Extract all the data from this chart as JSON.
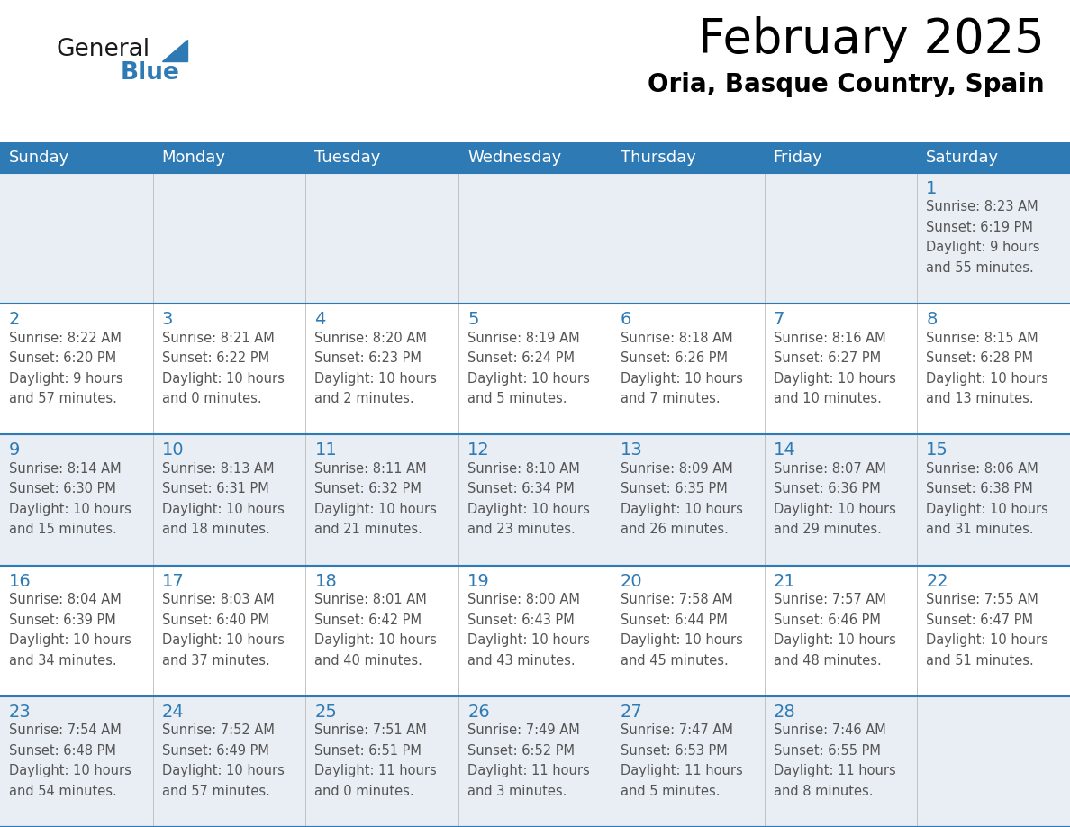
{
  "title": "February 2025",
  "subtitle": "Oria, Basque Country, Spain",
  "days_of_week": [
    "Sunday",
    "Monday",
    "Tuesday",
    "Wednesday",
    "Thursday",
    "Friday",
    "Saturday"
  ],
  "header_bg": "#2e7ab5",
  "header_text": "#ffffff",
  "day_number_color": "#2e7ab5",
  "cell_text_color": "#555555",
  "grid_color": "#2e7ab5",
  "row0_bg": "#e8eef4",
  "row1_bg": "#ffffff",
  "row2_bg": "#e8eef4",
  "row3_bg": "#ffffff",
  "row4_bg": "#e8eef4",
  "title_color": "#000000",
  "subtitle_color": "#000000",
  "logo_general_color": "#1a1a1a",
  "logo_blue_color": "#2e7ab5",
  "fig_width": 11.88,
  "fig_height": 9.18,
  "calendar_data": [
    {
      "day": 1,
      "col": 6,
      "row": 0,
      "sunrise": "8:23 AM",
      "sunset": "6:19 PM",
      "daylight": "9 hours and 55 minutes."
    },
    {
      "day": 2,
      "col": 0,
      "row": 1,
      "sunrise": "8:22 AM",
      "sunset": "6:20 PM",
      "daylight": "9 hours and 57 minutes."
    },
    {
      "day": 3,
      "col": 1,
      "row": 1,
      "sunrise": "8:21 AM",
      "sunset": "6:22 PM",
      "daylight": "10 hours and 0 minutes."
    },
    {
      "day": 4,
      "col": 2,
      "row": 1,
      "sunrise": "8:20 AM",
      "sunset": "6:23 PM",
      "daylight": "10 hours and 2 minutes."
    },
    {
      "day": 5,
      "col": 3,
      "row": 1,
      "sunrise": "8:19 AM",
      "sunset": "6:24 PM",
      "daylight": "10 hours and 5 minutes."
    },
    {
      "day": 6,
      "col": 4,
      "row": 1,
      "sunrise": "8:18 AM",
      "sunset": "6:26 PM",
      "daylight": "10 hours and 7 minutes."
    },
    {
      "day": 7,
      "col": 5,
      "row": 1,
      "sunrise": "8:16 AM",
      "sunset": "6:27 PM",
      "daylight": "10 hours and 10 minutes."
    },
    {
      "day": 8,
      "col": 6,
      "row": 1,
      "sunrise": "8:15 AM",
      "sunset": "6:28 PM",
      "daylight": "10 hours and 13 minutes."
    },
    {
      "day": 9,
      "col": 0,
      "row": 2,
      "sunrise": "8:14 AM",
      "sunset": "6:30 PM",
      "daylight": "10 hours and 15 minutes."
    },
    {
      "day": 10,
      "col": 1,
      "row": 2,
      "sunrise": "8:13 AM",
      "sunset": "6:31 PM",
      "daylight": "10 hours and 18 minutes."
    },
    {
      "day": 11,
      "col": 2,
      "row": 2,
      "sunrise": "8:11 AM",
      "sunset": "6:32 PM",
      "daylight": "10 hours and 21 minutes."
    },
    {
      "day": 12,
      "col": 3,
      "row": 2,
      "sunrise": "8:10 AM",
      "sunset": "6:34 PM",
      "daylight": "10 hours and 23 minutes."
    },
    {
      "day": 13,
      "col": 4,
      "row": 2,
      "sunrise": "8:09 AM",
      "sunset": "6:35 PM",
      "daylight": "10 hours and 26 minutes."
    },
    {
      "day": 14,
      "col": 5,
      "row": 2,
      "sunrise": "8:07 AM",
      "sunset": "6:36 PM",
      "daylight": "10 hours and 29 minutes."
    },
    {
      "day": 15,
      "col": 6,
      "row": 2,
      "sunrise": "8:06 AM",
      "sunset": "6:38 PM",
      "daylight": "10 hours and 31 minutes."
    },
    {
      "day": 16,
      "col": 0,
      "row": 3,
      "sunrise": "8:04 AM",
      "sunset": "6:39 PM",
      "daylight": "10 hours and 34 minutes."
    },
    {
      "day": 17,
      "col": 1,
      "row": 3,
      "sunrise": "8:03 AM",
      "sunset": "6:40 PM",
      "daylight": "10 hours and 37 minutes."
    },
    {
      "day": 18,
      "col": 2,
      "row": 3,
      "sunrise": "8:01 AM",
      "sunset": "6:42 PM",
      "daylight": "10 hours and 40 minutes."
    },
    {
      "day": 19,
      "col": 3,
      "row": 3,
      "sunrise": "8:00 AM",
      "sunset": "6:43 PM",
      "daylight": "10 hours and 43 minutes."
    },
    {
      "day": 20,
      "col": 4,
      "row": 3,
      "sunrise": "7:58 AM",
      "sunset": "6:44 PM",
      "daylight": "10 hours and 45 minutes."
    },
    {
      "day": 21,
      "col": 5,
      "row": 3,
      "sunrise": "7:57 AM",
      "sunset": "6:46 PM",
      "daylight": "10 hours and 48 minutes."
    },
    {
      "day": 22,
      "col": 6,
      "row": 3,
      "sunrise": "7:55 AM",
      "sunset": "6:47 PM",
      "daylight": "10 hours and 51 minutes."
    },
    {
      "day": 23,
      "col": 0,
      "row": 4,
      "sunrise": "7:54 AM",
      "sunset": "6:48 PM",
      "daylight": "10 hours and 54 minutes."
    },
    {
      "day": 24,
      "col": 1,
      "row": 4,
      "sunrise": "7:52 AM",
      "sunset": "6:49 PM",
      "daylight": "10 hours and 57 minutes."
    },
    {
      "day": 25,
      "col": 2,
      "row": 4,
      "sunrise": "7:51 AM",
      "sunset": "6:51 PM",
      "daylight": "11 hours and 0 minutes."
    },
    {
      "day": 26,
      "col": 3,
      "row": 4,
      "sunrise": "7:49 AM",
      "sunset": "6:52 PM",
      "daylight": "11 hours and 3 minutes."
    },
    {
      "day": 27,
      "col": 4,
      "row": 4,
      "sunrise": "7:47 AM",
      "sunset": "6:53 PM",
      "daylight": "11 hours and 5 minutes."
    },
    {
      "day": 28,
      "col": 5,
      "row": 4,
      "sunrise": "7:46 AM",
      "sunset": "6:55 PM",
      "daylight": "11 hours and 8 minutes."
    }
  ]
}
